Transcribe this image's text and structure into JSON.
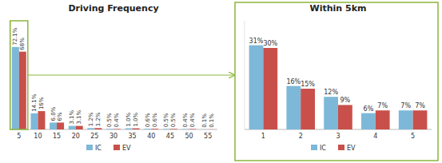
{
  "chart_data": [
    {
      "type": "bar",
      "title": "Driving Frequency",
      "categories": [
        "5",
        "10",
        "15",
        "20",
        "25",
        "30",
        "35",
        "40",
        "45",
        "50",
        "55"
      ],
      "series": [
        {
          "name": "IC",
          "color": "#7db8d8",
          "values": [
            72.1,
            14.1,
            6.0,
            3.1,
            1.2,
            0.5,
            1.0,
            0.6,
            0.5,
            0.4,
            0.1
          ],
          "value_labels": [
            "72.1%",
            "14.1%",
            "6.0%",
            "3.1%",
            "1.2%",
            "0.5%",
            "1.0%",
            "0.6%",
            "0.5%",
            "0.4%",
            "0.1%"
          ]
        },
        {
          "name": "EV",
          "color": "#c9504a",
          "values": [
            68.0,
            16.0,
            6.0,
            3.1,
            1.2,
            0.4,
            1.0,
            0.6,
            0.5,
            0.4,
            0.1
          ],
          "value_labels": [
            "68%",
            "16%",
            "6%",
            "3.1%",
            "1.2%",
            "0.4%",
            "1.0%",
            "0.6%",
            "0.5%",
            "0.4%",
            "0.1%"
          ]
        }
      ],
      "ylim": [
        0,
        95
      ],
      "grid": false,
      "legend": "bottom",
      "data_labels": true,
      "tick_labels": "x"
    },
    {
      "type": "bar",
      "title": "Within 5km",
      "categories": [
        "1",
        "2",
        "3",
        "4",
        "5"
      ],
      "series": [
        {
          "name": "IC",
          "color": "#7db8d8",
          "values": [
            31,
            16,
            12,
            6,
            7
          ],
          "value_labels": [
            "31%",
            "16%",
            "12%",
            "6%",
            "7%"
          ]
        },
        {
          "name": "EV",
          "color": "#c9504a",
          "values": [
            30,
            15,
            9,
            7,
            7
          ],
          "value_labels": [
            "30%",
            "15%",
            "9%",
            "7%",
            "7%"
          ]
        }
      ],
      "ylim": [
        0,
        40
      ],
      "grid": false,
      "legend": "bottom",
      "data_labels": true,
      "tick_labels": "x"
    }
  ]
}
